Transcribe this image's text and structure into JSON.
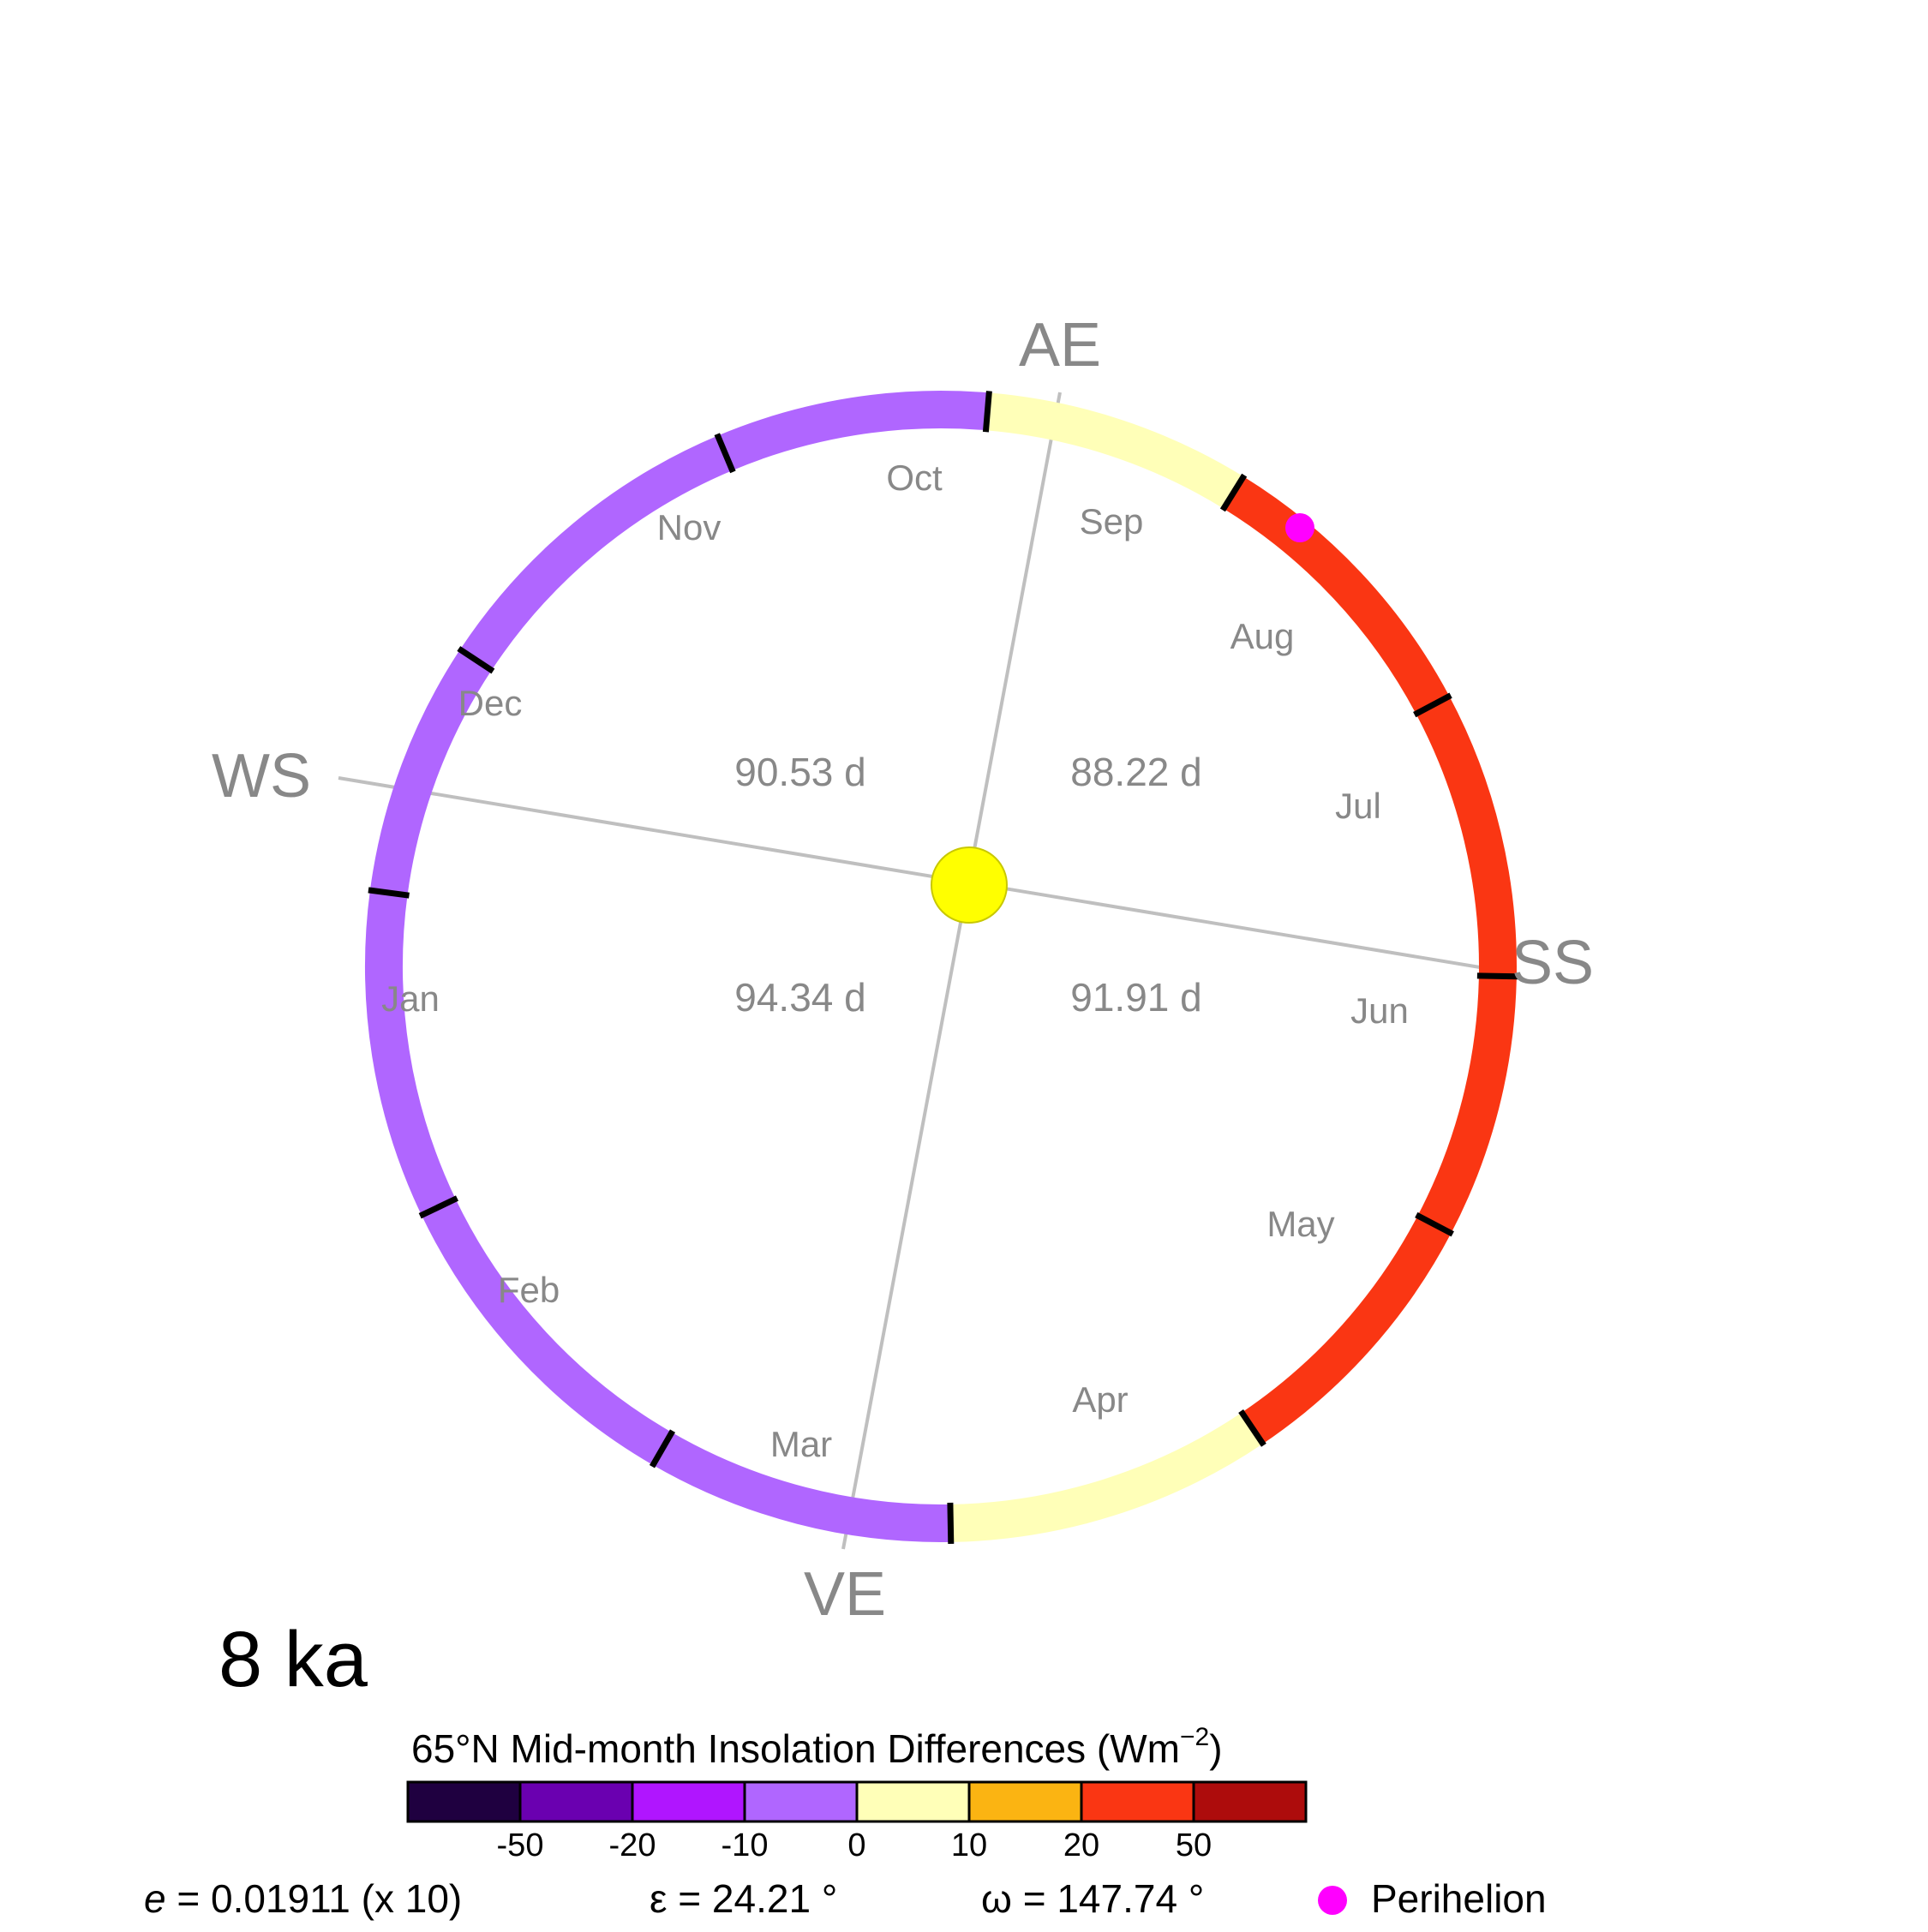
{
  "colors": {
    "background": "#ffffff",
    "axis_line": "#bfbfbf",
    "label_grey": "#888888",
    "sun_fill": "#ffff00",
    "sun_stroke": "#c8c800",
    "perihelion": "#ff00ff",
    "tick": "#000000"
  },
  "orbit": {
    "equinox_solstice_labels": {
      "ae": "AE",
      "ws": "WS",
      "ss": "SS",
      "ve": "VE"
    },
    "season_lengths": {
      "ae_ws": "90.53 d",
      "ss_ae": "88.22 d",
      "ws_ve": "94.34 d",
      "ve_ss": "91.91 d"
    },
    "months": [
      {
        "label": "Jan",
        "insolation_bin": "0 to -10",
        "color": "#b066ff"
      },
      {
        "label": "Feb",
        "insolation_bin": "0 to -10",
        "color": "#b066ff"
      },
      {
        "label": "Mar",
        "insolation_bin": "0 to -10",
        "color": "#b066ff"
      },
      {
        "label": "Apr",
        "insolation_bin": "0 to 10",
        "color": "#ffffb8"
      },
      {
        "label": "May",
        "insolation_bin": "20 to 50",
        "color": "#fa3613"
      },
      {
        "label": "Jun",
        "insolation_bin": "20 to 50",
        "color": "#fa3613"
      },
      {
        "label": "Jul",
        "insolation_bin": "20 to 50",
        "color": "#fa3613"
      },
      {
        "label": "Aug",
        "insolation_bin": "20 to 50",
        "color": "#fa3613"
      },
      {
        "label": "Sep",
        "insolation_bin": "0 to 10",
        "color": "#ffffb8"
      },
      {
        "label": "Oct",
        "insolation_bin": "0 to -10",
        "color": "#b066ff"
      },
      {
        "label": "Nov",
        "insolation_bin": "0 to -10",
        "color": "#b066ff"
      },
      {
        "label": "Dec",
        "insolation_bin": "0 to -10",
        "color": "#b066ff"
      }
    ]
  },
  "time_label": "8 ka",
  "colorbar": {
    "title": "65°N Mid-month Insolation Differences (Wm",
    "title_exponent": "−2",
    "title_close": ")",
    "bins": [
      "#1f0040",
      "#6a00b0",
      "#b015ff",
      "#b066ff",
      "#ffffb8",
      "#fbb412",
      "#fa3613",
      "#ad0c0c"
    ],
    "tick_labels": [
      "-50",
      "-20",
      "-10",
      "0",
      "10",
      "20",
      "50"
    ]
  },
  "parameters": {
    "e_symbol": "e",
    "e_value": " = 0.01911 (x 10)",
    "obliquity": "ε  = 24.21 °",
    "precession": "ω = 147.74 °"
  },
  "legend": {
    "perihelion_label": "Perihelion"
  }
}
